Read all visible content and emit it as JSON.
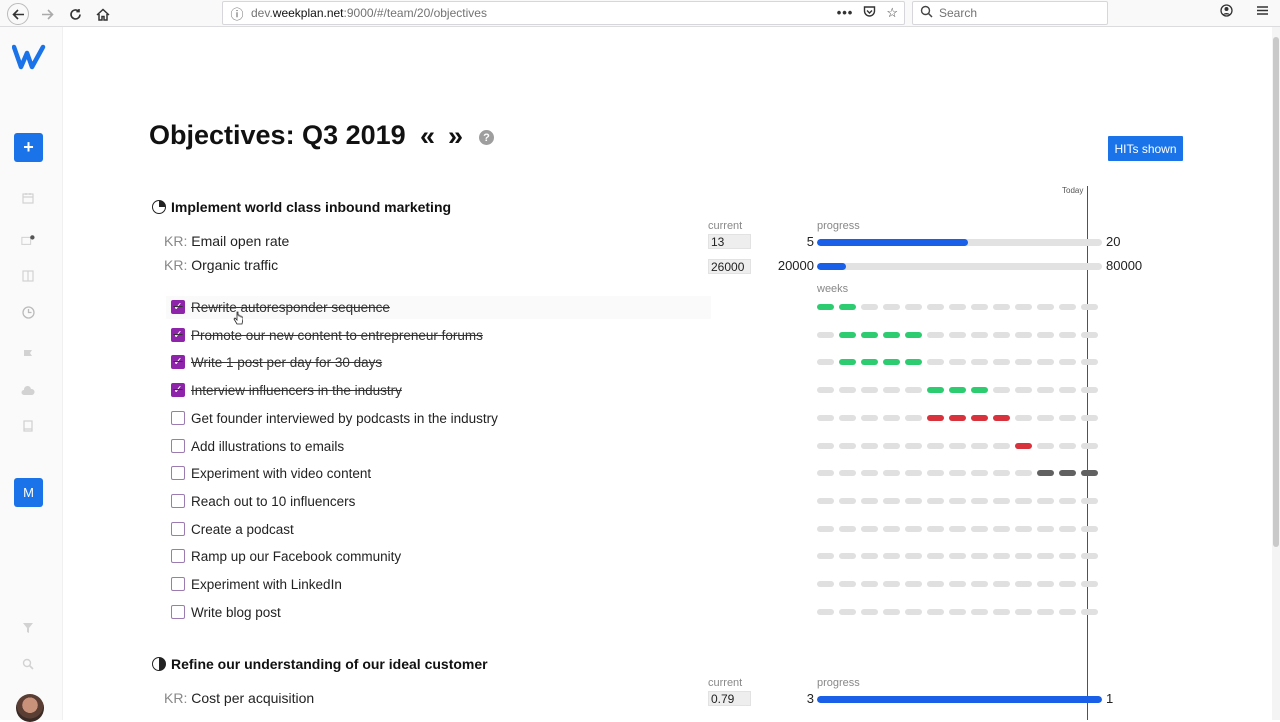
{
  "browser": {
    "url_prefix": "dev.",
    "url_host": "weekplan.net",
    "url_rest": ":9000/#/team/20/objectives",
    "search_placeholder": "Search",
    "page_actions_icon": "more-horizontal-icon"
  },
  "sidebar": {
    "logo": "weekplan-logo",
    "add_label": "+",
    "user_initial": "M",
    "icons": [
      "calendar-icon",
      "inbox-icon",
      "board-icon",
      "objectives-icon",
      "flag-icon",
      "cloud-icon",
      "book-icon",
      "filter-icon",
      "search-icon"
    ]
  },
  "header": {
    "title": "Objectives: Q3 2019",
    "prev": "«",
    "next": "»",
    "help": "?",
    "hits_button": "HITs shown"
  },
  "timeline": {
    "today_label": "Today",
    "today_week_position": 12.5,
    "week_count": 13
  },
  "labels": {
    "current": "current",
    "progress": "progress",
    "weeks": "weeks",
    "kr_prefix": "KR:"
  },
  "objectives": [
    {
      "title": "Implement world class inbound marketing",
      "key_results": [
        {
          "name": "Email open rate",
          "current": "13",
          "start": "5",
          "target": "20",
          "progress": 0.53
        },
        {
          "name": "Organic traffic",
          "current": "26000",
          "start": "20000",
          "target": "80000",
          "progress": 0.1
        }
      ],
      "tasks": [
        {
          "label": "Rewrite autoresponder sequence",
          "done": true,
          "weeks": {
            "color": "green",
            "from": 0,
            "to": 1
          }
        },
        {
          "label": "Promote our new content to entrepreneur forums",
          "done": true,
          "weeks": {
            "color": "green",
            "from": 1,
            "to": 4
          }
        },
        {
          "label": "Write 1 post per day for 30 days",
          "done": true,
          "weeks": {
            "color": "green",
            "from": 1,
            "to": 4
          }
        },
        {
          "label": "Interview influencers in the industry",
          "done": true,
          "weeks": {
            "color": "green",
            "from": 5,
            "to": 7
          }
        },
        {
          "label": "Get founder interviewed by podcasts in the industry",
          "done": false,
          "weeks": {
            "color": "red",
            "from": 5,
            "to": 8
          }
        },
        {
          "label": "Add illustrations to emails",
          "done": false,
          "weeks": {
            "color": "red",
            "from": 9,
            "to": 9
          }
        },
        {
          "label": "Experiment with video content",
          "done": false,
          "weeks": {
            "color": "dark",
            "from": 10,
            "to": 12
          }
        },
        {
          "label": "Reach out to 10 influencers",
          "done": false,
          "weeks": null
        },
        {
          "label": "Create a podcast",
          "done": false,
          "weeks": null
        },
        {
          "label": "Ramp up our Facebook community",
          "done": false,
          "weeks": null
        },
        {
          "label": "Experiment with LinkedIn",
          "done": false,
          "weeks": null
        },
        {
          "label": "Write blog post",
          "done": false,
          "weeks": null
        }
      ]
    },
    {
      "title": "Refine our understanding of our ideal customer",
      "key_results": [
        {
          "name": "Cost per acquisition",
          "current": "0.79",
          "start": "3",
          "target": "1",
          "progress": 1.0
        }
      ]
    }
  ],
  "colors": {
    "accent": "#1a73e8",
    "progress": "#1a5fe8",
    "checkbox": "#8e24aa",
    "today": "#c2185b",
    "green": "#2ecc71",
    "red": "#d8323c",
    "dark": "#616161"
  }
}
